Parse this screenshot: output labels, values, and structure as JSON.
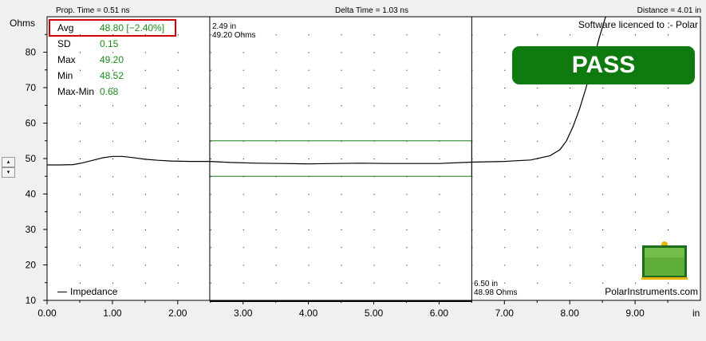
{
  "header": {
    "prop_time": "Prop. Time = 0.51 ns",
    "delta_time": "Delta Time = 1.03 ns",
    "distance": "Distance = 4.01 in"
  },
  "stats": [
    {
      "label": "Avg",
      "value": "48.80 [−2.40%]"
    },
    {
      "label": "SD",
      "value": "0.15"
    },
    {
      "label": "Max",
      "value": "49.20"
    },
    {
      "label": "Min",
      "value": "48.52"
    },
    {
      "label": "Max-Min",
      "value": "0.68"
    }
  ],
  "cursor1": {
    "position": "2.49 in",
    "value": "49.20 Ohms"
  },
  "cursor2": {
    "position": "6.50 in",
    "value": "48.98 Ohms"
  },
  "licence": "Software licenced to :- Polar",
  "result": "PASS",
  "brand": "PolarInstruments.com",
  "colors": {
    "trace": "#000000",
    "limit_box": "#1a7a1a",
    "pass": "#0f7a0f",
    "stat_values": "#1a8a1a",
    "avg_highlight": "#d00000",
    "grid_dots": "#000000"
  },
  "icons": {
    "spinner_up": "▴",
    "spinner_down": "▾"
  },
  "chart_data": {
    "type": "line",
    "xlabel": "in",
    "ylabel": "Ohms",
    "xlim": [
      0,
      10
    ],
    "ylim": [
      10,
      90
    ],
    "xticks": [
      0,
      1,
      2,
      3,
      4,
      5,
      6,
      7,
      8,
      9
    ],
    "xtick_labels": [
      "0.00",
      "1.00",
      "2.00",
      "3.00",
      "4.00",
      "5.00",
      "6.00",
      "7.00",
      "8.00",
      "9.00"
    ],
    "yticks": [
      10,
      20,
      30,
      40,
      50,
      60,
      70,
      80
    ],
    "ytick_labels": [
      "10",
      "20",
      "30",
      "40",
      "50",
      "60",
      "70",
      "80"
    ],
    "grid": "dotted",
    "legend": "bottom-left",
    "series": [
      {
        "name": "Impedance",
        "x": [
          0,
          0.2,
          0.4,
          0.55,
          0.7,
          0.85,
          1.0,
          1.15,
          1.3,
          1.5,
          1.7,
          1.9,
          2.2,
          2.49,
          2.8,
          3.2,
          3.6,
          4.0,
          4.4,
          4.8,
          5.2,
          5.6,
          6.0,
          6.5,
          7.0,
          7.4,
          7.7,
          7.85,
          7.95,
          8.05,
          8.15,
          8.25,
          8.35,
          8.45,
          8.55
        ],
        "y": [
          48.2,
          48.2,
          48.3,
          48.8,
          49.5,
          50.2,
          50.6,
          50.6,
          50.3,
          49.8,
          49.5,
          49.3,
          49.2,
          49.2,
          48.9,
          48.7,
          48.6,
          48.5,
          48.6,
          48.7,
          48.6,
          48.6,
          48.6,
          48.98,
          49.2,
          49.6,
          50.8,
          52.5,
          55,
          59,
          64,
          70,
          77,
          84,
          90
        ]
      }
    ],
    "cursors": [
      2.49,
      6.5
    ],
    "limit_box": {
      "x": [
        2.49,
        6.5
      ],
      "y": [
        45,
        55
      ]
    }
  }
}
